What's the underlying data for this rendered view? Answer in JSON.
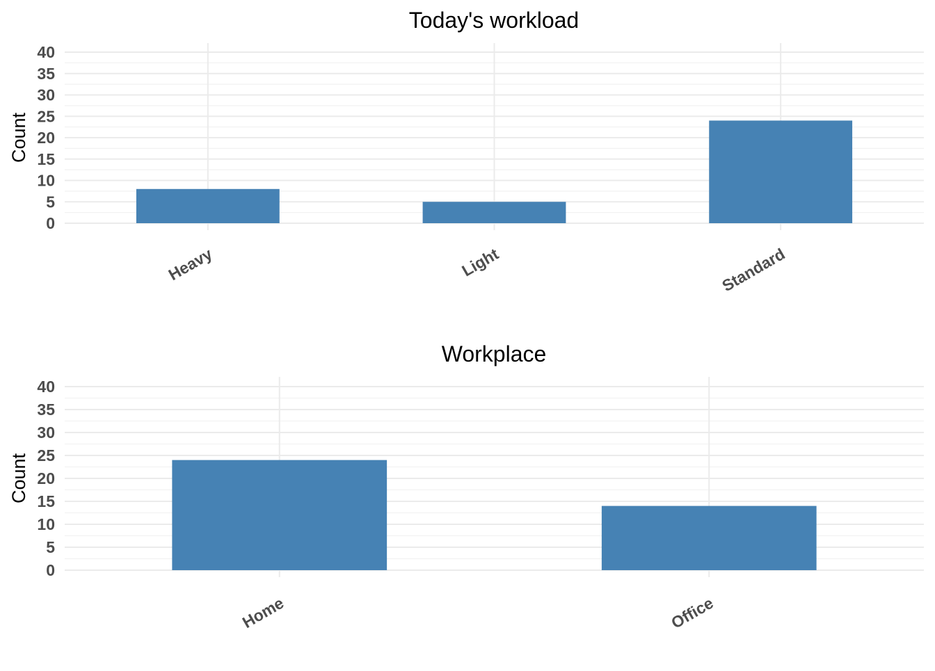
{
  "chart_data": [
    {
      "type": "bar",
      "title": "Today's workload",
      "xlabel": "",
      "ylabel": "Count",
      "categories": [
        "Heavy",
        "Light",
        "Standard"
      ],
      "values": [
        8,
        5,
        24
      ],
      "ylim": [
        0,
        40
      ],
      "yticks": [
        0,
        5,
        10,
        15,
        20,
        25,
        30,
        35,
        40
      ],
      "grid": true,
      "bar_color": "#4682b4"
    },
    {
      "type": "bar",
      "title": "Workplace",
      "xlabel": "",
      "ylabel": "Count",
      "categories": [
        "Home",
        "Office"
      ],
      "values": [
        24,
        14
      ],
      "ylim": [
        0,
        40
      ],
      "yticks": [
        0,
        5,
        10,
        15,
        20,
        25,
        30,
        35,
        40
      ],
      "grid": true,
      "bar_color": "#4682b4"
    }
  ]
}
